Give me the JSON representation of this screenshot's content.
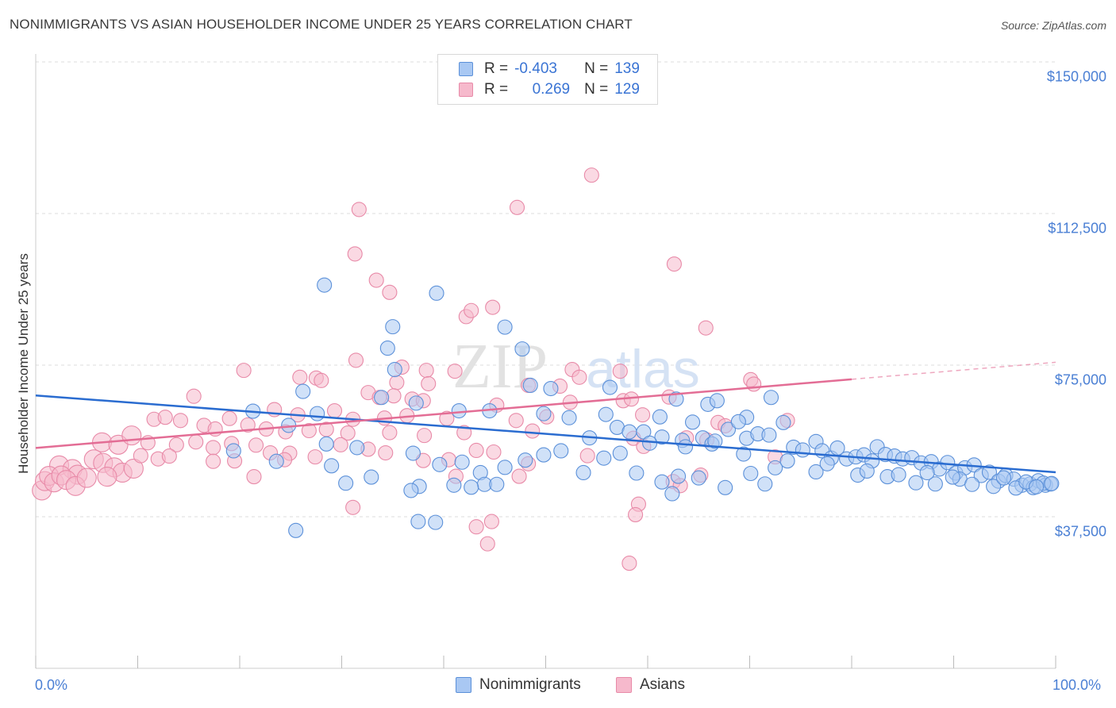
{
  "header": {
    "title": "NONIMMIGRANTS VS ASIAN HOUSEHOLDER INCOME UNDER 25 YEARS CORRELATION CHART",
    "source": "Source: ZipAtlas.com"
  },
  "legend_top": {
    "rows": [
      {
        "r_label": "R =",
        "r_value": "-0.403",
        "n_label": "N =",
        "n_value": "139"
      },
      {
        "r_label": "R =",
        "r_value": "0.269",
        "n_label": "N =",
        "n_value": "129"
      }
    ]
  },
  "legend_bottom": {
    "nonimmigrants": "Nonimmigrants",
    "asians": "Asians"
  },
  "watermark": {
    "zip": "ZIP",
    "atlas": "atlas"
  },
  "colors": {
    "blue_fill": "#a9c8f3",
    "blue_stroke": "#5b90d9",
    "blue_line": "#2a6cd0",
    "pink_fill": "#f6b9cc",
    "pink_stroke": "#e88aa8",
    "pink_line": "#e36d95",
    "tick_text": "#4a7fd4",
    "grid": "#dedede"
  },
  "chart_data": {
    "type": "scatter",
    "title": "NONIMMIGRANTS VS ASIAN HOUSEHOLDER INCOME UNDER 25 YEARS CORRELATION CHART",
    "xlabel": "",
    "ylabel": "Householder Income Under 25 years",
    "xlim": [
      0,
      100
    ],
    "ylim": [
      0,
      150000
    ],
    "y_ticks": [
      37500,
      75000,
      112500,
      150000
    ],
    "y_tick_labels": [
      "$37,500",
      "$75,000",
      "$112,500",
      "$150,000"
    ],
    "x_tick_labels": [
      "0.0%",
      "100.0%"
    ],
    "grid": "horizontal dashed",
    "legend_placement": "top-center",
    "series": [
      {
        "name": "Nonimmigrants",
        "r": -0.403,
        "n": 139,
        "trend": {
          "x": [
            0,
            100
          ],
          "y": [
            67500,
            48500
          ]
        },
        "points": [
          [
            28.3,
            94800
          ],
          [
            39.3,
            92800
          ],
          [
            35.0,
            84500
          ],
          [
            46.0,
            84400
          ],
          [
            34.5,
            79200
          ],
          [
            47.7,
            79000
          ],
          [
            35.2,
            73900
          ],
          [
            50.5,
            69200
          ],
          [
            56.3,
            69500
          ],
          [
            48.5,
            70000
          ],
          [
            26.2,
            68500
          ],
          [
            33.9,
            67000
          ],
          [
            37.3,
            65600
          ],
          [
            62.8,
            66600
          ],
          [
            65.9,
            65300
          ],
          [
            66.8,
            66200
          ],
          [
            72.1,
            67000
          ],
          [
            69.7,
            62100
          ],
          [
            21.3,
            63600
          ],
          [
            24.8,
            60100
          ],
          [
            27.6,
            63000
          ],
          [
            41.5,
            63700
          ],
          [
            44.5,
            63700
          ],
          [
            49.8,
            63000
          ],
          [
            52.3,
            62000
          ],
          [
            55.9,
            62800
          ],
          [
            57.0,
            59600
          ],
          [
            58.2,
            58500
          ],
          [
            59.6,
            58500
          ],
          [
            61.4,
            57200
          ],
          [
            61.2,
            62200
          ],
          [
            63.4,
            56400
          ],
          [
            64.4,
            60900
          ],
          [
            65.4,
            57000
          ],
          [
            66.3,
            55500
          ],
          [
            67.9,
            59100
          ],
          [
            68.9,
            61000
          ],
          [
            69.7,
            56900
          ],
          [
            70.8,
            58000
          ],
          [
            71.9,
            57700
          ],
          [
            73.3,
            60800
          ],
          [
            74.3,
            54700
          ],
          [
            75.2,
            54000
          ],
          [
            76.5,
            56100
          ],
          [
            77.1,
            53800
          ],
          [
            78.0,
            52000
          ],
          [
            78.6,
            54500
          ],
          [
            79.5,
            51800
          ],
          [
            80.4,
            52300
          ],
          [
            81.2,
            52800
          ],
          [
            82.0,
            51300
          ],
          [
            82.5,
            54800
          ],
          [
            83.3,
            52900
          ],
          [
            84.2,
            52500
          ],
          [
            85.0,
            51800
          ],
          [
            85.9,
            52100
          ],
          [
            86.8,
            50800
          ],
          [
            87.8,
            51100
          ],
          [
            88.6,
            49300
          ],
          [
            89.4,
            50900
          ],
          [
            90.2,
            48300
          ],
          [
            91.1,
            49600
          ],
          [
            92.0,
            50300
          ],
          [
            92.7,
            47700
          ],
          [
            93.5,
            48500
          ],
          [
            94.4,
            46300
          ],
          [
            95.1,
            47700
          ],
          [
            95.9,
            46800
          ],
          [
            96.7,
            45300
          ],
          [
            97.5,
            45600
          ],
          [
            98.3,
            46400
          ],
          [
            99.0,
            45300
          ],
          [
            99.5,
            45600
          ],
          [
            19.4,
            53800
          ],
          [
            23.6,
            51200
          ],
          [
            29.0,
            50100
          ],
          [
            31.5,
            54600
          ],
          [
            37.0,
            53200
          ],
          [
            39.6,
            50400
          ],
          [
            41.8,
            51000
          ],
          [
            43.6,
            48400
          ],
          [
            46.0,
            49700
          ],
          [
            48.0,
            51500
          ],
          [
            49.8,
            52800
          ],
          [
            51.5,
            53800
          ],
          [
            53.7,
            48400
          ],
          [
            55.7,
            52000
          ],
          [
            57.3,
            53200
          ],
          [
            58.9,
            48300
          ],
          [
            61.4,
            46100
          ],
          [
            63.7,
            54800
          ],
          [
            65.0,
            47100
          ],
          [
            69.4,
            53000
          ],
          [
            70.1,
            48200
          ],
          [
            72.5,
            49600
          ],
          [
            73.7,
            51300
          ],
          [
            30.4,
            45800
          ],
          [
            32.9,
            47300
          ],
          [
            37.6,
            45000
          ],
          [
            41.0,
            45300
          ],
          [
            44.0,
            45500
          ],
          [
            45.2,
            45500
          ],
          [
            62.4,
            43200
          ],
          [
            67.6,
            44700
          ],
          [
            71.5,
            45600
          ],
          [
            76.5,
            48600
          ],
          [
            80.6,
            47800
          ],
          [
            83.5,
            47400
          ],
          [
            86.3,
            45900
          ],
          [
            88.2,
            45600
          ],
          [
            90.6,
            46800
          ],
          [
            91.8,
            45500
          ],
          [
            93.9,
            45000
          ],
          [
            96.1,
            44600
          ],
          [
            97.8,
            44700
          ],
          [
            98.8,
            45800
          ],
          [
            99.6,
            45700
          ],
          [
            25.5,
            34100
          ],
          [
            37.5,
            36300
          ],
          [
            39.2,
            36100
          ],
          [
            36.8,
            44000
          ],
          [
            28.5,
            55500
          ],
          [
            42.7,
            44800
          ],
          [
            54.3,
            57000
          ],
          [
            60.2,
            55700
          ],
          [
            77.6,
            50600
          ],
          [
            81.5,
            48800
          ],
          [
            84.6,
            47900
          ],
          [
            87.4,
            48400
          ],
          [
            89.9,
            47300
          ],
          [
            94.9,
            47100
          ],
          [
            97.1,
            46100
          ],
          [
            98.1,
            44900
          ],
          [
            63.0,
            47500
          ],
          [
            66.6,
            56200
          ]
        ]
      },
      {
        "name": "Asians",
        "r": 0.269,
        "n": 129,
        "trend": {
          "x": [
            0,
            80
          ],
          "y": [
            54500,
            71500
          ]
        },
        "trend_dashed": {
          "x": [
            80,
            100
          ],
          "y": [
            71500,
            75700
          ]
        },
        "points": [
          [
            54.5,
            122000
          ],
          [
            47.2,
            114000
          ],
          [
            31.7,
            113500
          ],
          [
            31.3,
            102500
          ],
          [
            62.6,
            100000
          ],
          [
            33.4,
            96000
          ],
          [
            34.7,
            93000
          ],
          [
            42.2,
            87000
          ],
          [
            42.7,
            88500
          ],
          [
            44.8,
            89300
          ],
          [
            65.7,
            84200
          ],
          [
            31.4,
            76200
          ],
          [
            35.9,
            74500
          ],
          [
            38.3,
            73700
          ],
          [
            41.1,
            73500
          ],
          [
            20.4,
            73700
          ],
          [
            52.6,
            73900
          ],
          [
            57.3,
            73500
          ],
          [
            25.9,
            72000
          ],
          [
            27.5,
            71800
          ],
          [
            28.0,
            71200
          ],
          [
            35.4,
            70700
          ],
          [
            38.5,
            70400
          ],
          [
            48.3,
            70000
          ],
          [
            51.4,
            69800
          ],
          [
            53.3,
            72000
          ],
          [
            70.1,
            71400
          ],
          [
            70.4,
            70300
          ],
          [
            15.5,
            67300
          ],
          [
            32.6,
            68200
          ],
          [
            33.7,
            67000
          ],
          [
            35.1,
            67400
          ],
          [
            36.9,
            66600
          ],
          [
            38.0,
            66200
          ],
          [
            45.2,
            65100
          ],
          [
            52.4,
            65800
          ],
          [
            57.6,
            66200
          ],
          [
            58.4,
            66600
          ],
          [
            62.1,
            67100
          ],
          [
            23.4,
            64000
          ],
          [
            25.7,
            62700
          ],
          [
            29.3,
            63700
          ],
          [
            31.1,
            61600
          ],
          [
            34.2,
            61900
          ],
          [
            36.4,
            62500
          ],
          [
            40.3,
            61800
          ],
          [
            47.1,
            61300
          ],
          [
            50.1,
            62200
          ],
          [
            59.5,
            62700
          ],
          [
            66.9,
            60800
          ],
          [
            67.6,
            60000
          ],
          [
            73.7,
            61300
          ],
          [
            11.6,
            61600
          ],
          [
            12.7,
            62100
          ],
          [
            14.2,
            61300
          ],
          [
            16.5,
            60100
          ],
          [
            17.6,
            59200
          ],
          [
            19.0,
            61800
          ],
          [
            20.8,
            60200
          ],
          [
            22.6,
            59200
          ],
          [
            24.5,
            58500
          ],
          [
            26.8,
            58800
          ],
          [
            28.5,
            59100
          ],
          [
            30.6,
            58200
          ],
          [
            34.7,
            58300
          ],
          [
            38.1,
            57600
          ],
          [
            42.0,
            58300
          ],
          [
            48.7,
            58700
          ],
          [
            58.6,
            56900
          ],
          [
            63.8,
            57000
          ],
          [
            65.8,
            56500
          ],
          [
            6.5,
            55900
          ],
          [
            8.1,
            55300
          ],
          [
            9.4,
            57600
          ],
          [
            11.0,
            55800
          ],
          [
            13.8,
            55300
          ],
          [
            15.7,
            56000
          ],
          [
            17.4,
            54600
          ],
          [
            19.2,
            55600
          ],
          [
            21.6,
            55200
          ],
          [
            23.0,
            53300
          ],
          [
            24.9,
            53200
          ],
          [
            27.4,
            52300
          ],
          [
            29.9,
            55300
          ],
          [
            32.6,
            54200
          ],
          [
            44.9,
            53500
          ],
          [
            59.6,
            54900
          ],
          [
            72.5,
            52300
          ],
          [
            2.3,
            50200
          ],
          [
            3.6,
            49300
          ],
          [
            4.1,
            47900
          ],
          [
            5.7,
            51700
          ],
          [
            6.6,
            50800
          ],
          [
            7.7,
            49700
          ],
          [
            8.5,
            48400
          ],
          [
            9.6,
            49400
          ],
          [
            10.3,
            52600
          ],
          [
            12.0,
            51800
          ],
          [
            13.1,
            52500
          ],
          [
            17.4,
            51200
          ],
          [
            19.5,
            51300
          ],
          [
            21.4,
            47400
          ],
          [
            24.4,
            51600
          ],
          [
            34.3,
            53300
          ],
          [
            38.0,
            51400
          ],
          [
            40.5,
            51600
          ],
          [
            43.2,
            53900
          ],
          [
            48.3,
            50600
          ],
          [
            54.1,
            52600
          ],
          [
            0.6,
            44000
          ],
          [
            0.9,
            46300
          ],
          [
            1.3,
            47600
          ],
          [
            1.8,
            46000
          ],
          [
            2.5,
            47700
          ],
          [
            3.0,
            46600
          ],
          [
            3.9,
            45100
          ],
          [
            5.0,
            47100
          ],
          [
            7.0,
            47400
          ],
          [
            41.2,
            47500
          ],
          [
            47.4,
            47500
          ],
          [
            62.5,
            46200
          ],
          [
            65.2,
            47800
          ],
          [
            63.2,
            45200
          ],
          [
            31.1,
            39800
          ],
          [
            43.2,
            35000
          ],
          [
            44.7,
            36300
          ],
          [
            59.1,
            40600
          ],
          [
            58.8,
            38000
          ],
          [
            44.3,
            30800
          ],
          [
            58.2,
            26000
          ]
        ]
      }
    ]
  }
}
